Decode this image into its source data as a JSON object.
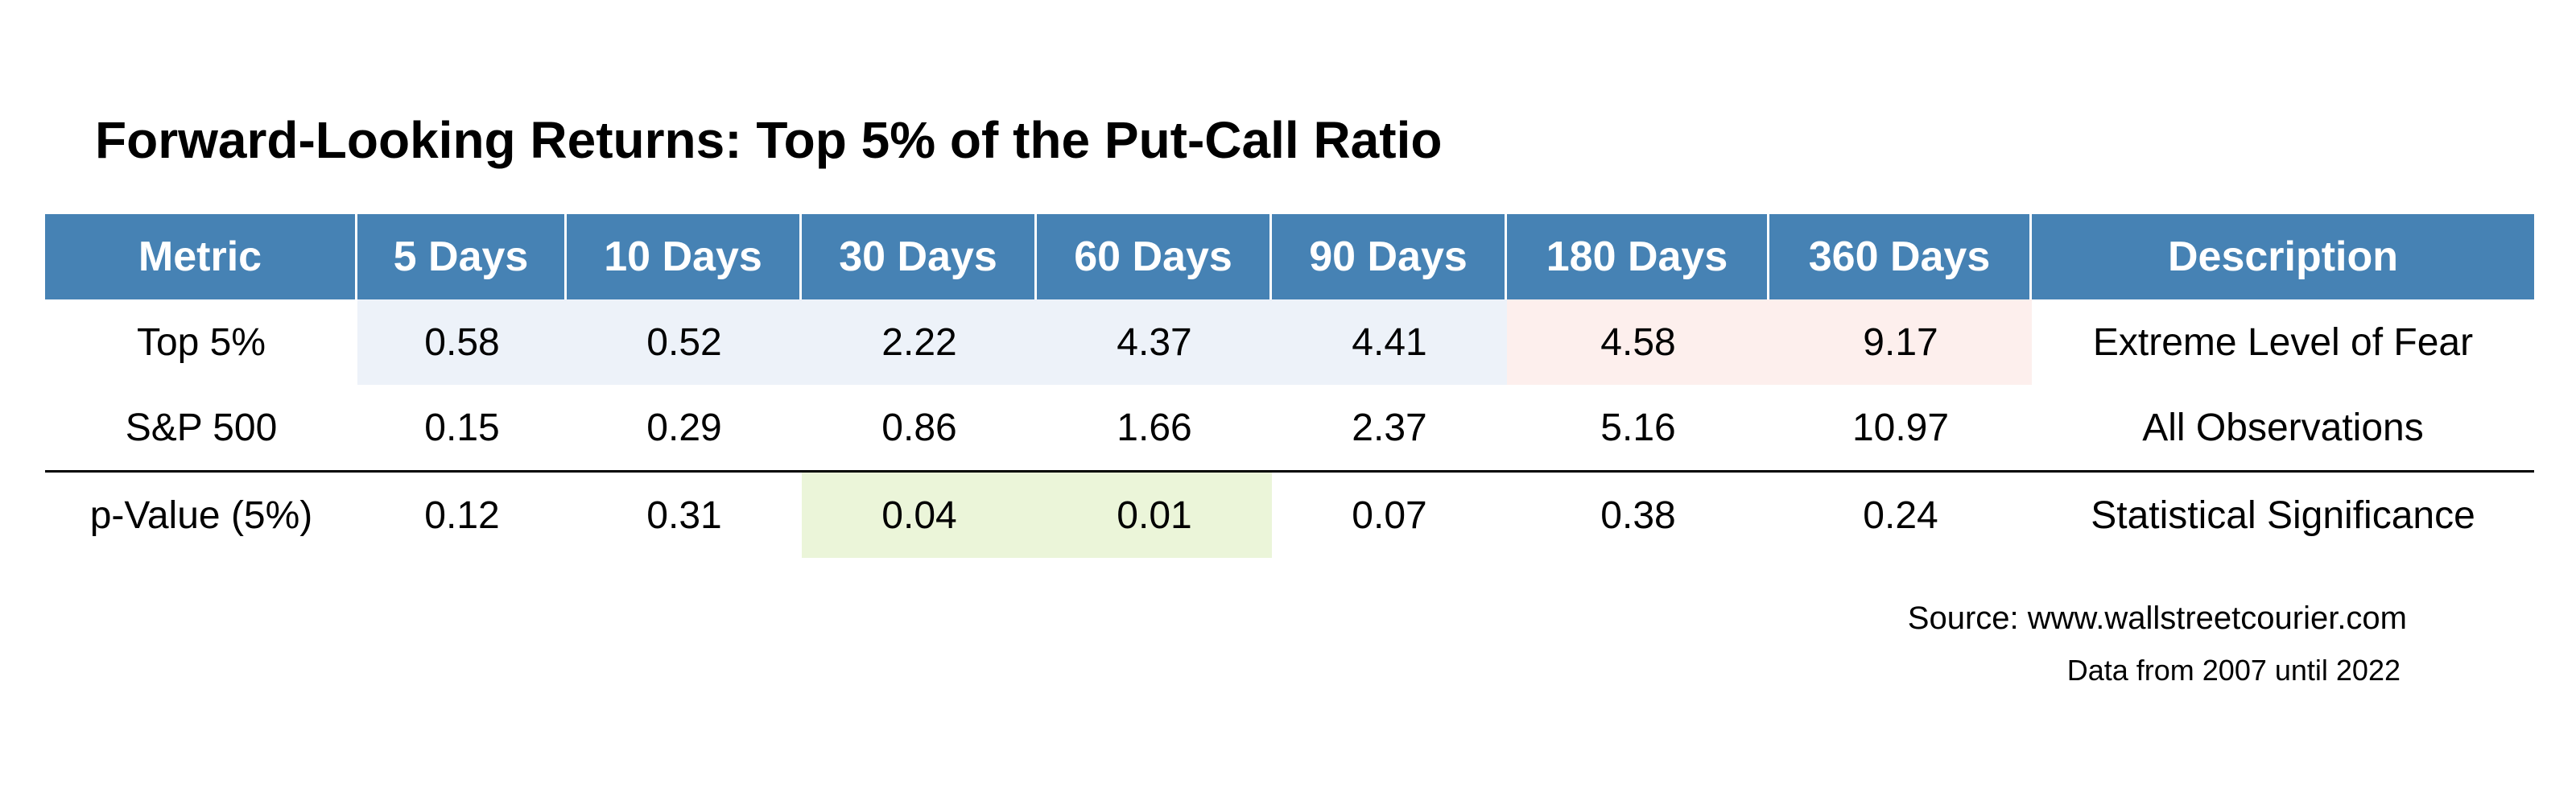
{
  "title": "Forward-Looking Returns: Top 5% of the Put-Call Ratio",
  "colors": {
    "header_bg": "#4682b4",
    "header_text": "#ffffff",
    "highlight_blue": "#edf2f9",
    "highlight_pink": "#fdefed",
    "highlight_green": "#ebf5d9"
  },
  "chart_data": {
    "type": "table",
    "columns": [
      "Metric",
      "5 Days",
      "10 Days",
      "30 Days",
      "60 Days",
      "90 Days",
      "180 Days",
      "360 Days",
      "Description"
    ],
    "rows": [
      {
        "cells": [
          "Top 5%",
          "0.58",
          "0.52",
          "2.22",
          "4.37",
          "4.41",
          "4.58",
          "9.17",
          "Extreme Level of Fear"
        ],
        "highlights": [
          "",
          "blue",
          "blue",
          "blue",
          "blue",
          "blue",
          "pink",
          "pink",
          ""
        ]
      },
      {
        "cells": [
          "S&P 500",
          "0.15",
          "0.29",
          "0.86",
          "1.66",
          "2.37",
          "5.16",
          "10.97",
          "All Observations"
        ],
        "highlights": [
          "",
          "",
          "",
          "",
          "",
          "",
          "",
          "",
          ""
        ]
      },
      {
        "cells": [
          "p-Value (5%)",
          "0.12",
          "0.31",
          "0.04",
          "0.01",
          "0.07",
          "0.38",
          "0.24",
          "Statistical Significance"
        ],
        "highlights": [
          "",
          "",
          "",
          "green",
          "green",
          "",
          "",
          "",
          ""
        ]
      }
    ]
  },
  "footer": {
    "source": "Source: www.wallstreetcourier.com",
    "note": "Data from 2007 until 2022"
  }
}
